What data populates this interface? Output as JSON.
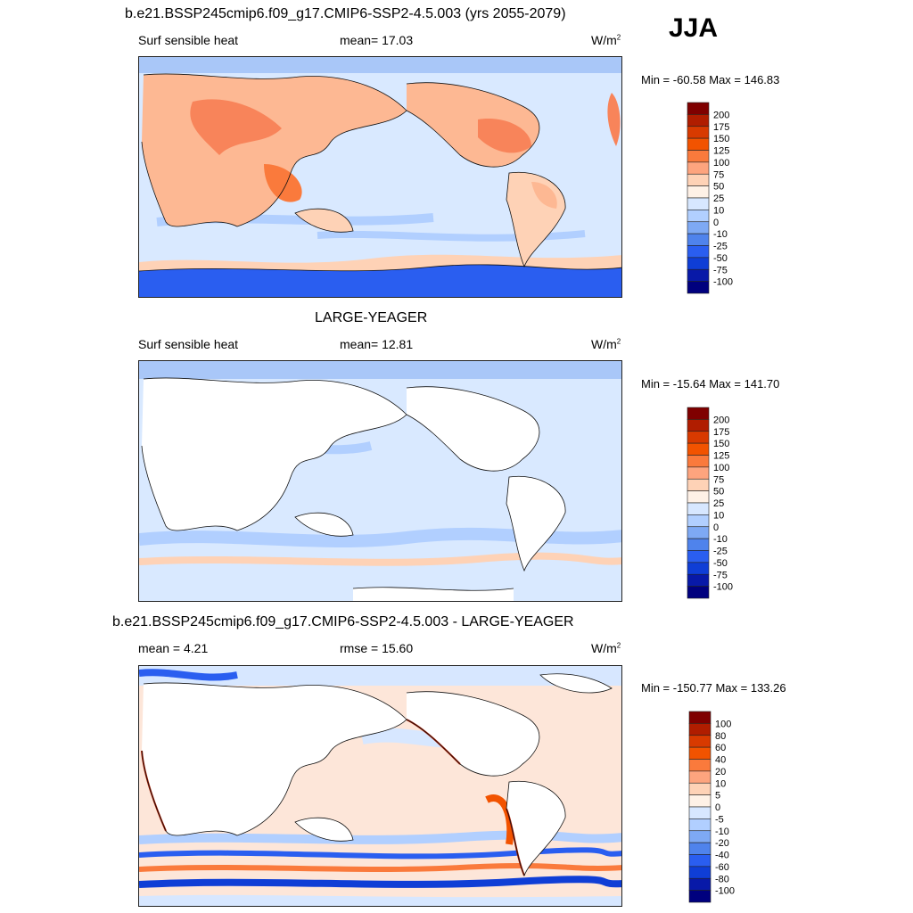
{
  "season": "JJA",
  "colors": {
    "ocean_base_1": "#d9e9ff",
    "ocean_base_2": "#e8f1ff",
    "ocean_diff": "#fde6d9",
    "land_white": "#ffffff",
    "antarctic_blue": "#2a5ef0"
  },
  "panels": [
    {
      "title": "b.e21.BSSP245cmip6.f09_g17.CMIP6-SSP2-4.5.003 (yrs 2055-2079)",
      "left_label": "Surf sensible heat",
      "center_label": "mean=  17.03",
      "units": "W/m",
      "units_sup": "2",
      "minmax": "Min = -60.58 Max = 146.83",
      "colorbar_labels": [
        "200",
        "175",
        "150",
        "125",
        "100",
        "75",
        "50",
        "25",
        "10",
        "0",
        "-10",
        "-25",
        "-50",
        "-75",
        "-100"
      ]
    },
    {
      "title": "LARGE-YEAGER",
      "left_label": "Surf sensible heat",
      "center_label": "mean=  12.81",
      "units": "W/m",
      "units_sup": "2",
      "minmax": "Min = -15.64 Max = 141.70",
      "colorbar_labels": [
        "200",
        "175",
        "150",
        "125",
        "100",
        "75",
        "50",
        "25",
        "10",
        "0",
        "-10",
        "-25",
        "-50",
        "-75",
        "-100"
      ]
    },
    {
      "title": "b.e21.BSSP245cmip6.f09_g17.CMIP6-SSP2-4.5.003 - LARGE-YEAGER",
      "left_label": "mean =   4.21",
      "center_label": "rmse =  15.60",
      "units": "W/m",
      "units_sup": "2",
      "minmax": "Min = -150.77 Max = 133.26",
      "colorbar_labels": [
        "100",
        "80",
        "60",
        "40",
        "20",
        "10",
        "5",
        "0",
        "-5",
        "-10",
        "-20",
        "-40",
        "-60",
        "-80",
        "-100"
      ]
    }
  ],
  "colorbar_colors": [
    "#7f0000",
    "#b01d00",
    "#d83a00",
    "#f25300",
    "#fa7a3c",
    "#fda47e",
    "#fed2b6",
    "#fef1e6",
    "#d7e7ff",
    "#b1cfff",
    "#7ea9f4",
    "#4f83ec",
    "#2a5ef0",
    "#0f3ed6",
    "#0819a8",
    "#00007e"
  ]
}
